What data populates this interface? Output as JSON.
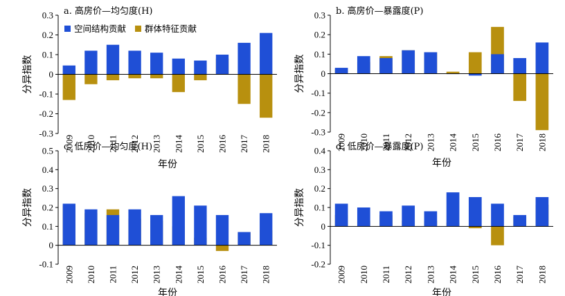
{
  "colors": {
    "spatial": "#1f4fd6",
    "group": "#b8900f",
    "axis": "#000000"
  },
  "legend": {
    "spatial": "空间结构贡献",
    "group": "群体特征贡献"
  },
  "chart_data": [
    {
      "type": "bar",
      "title": "a. 高房价—均匀度(H)",
      "xlabel": "年份",
      "ylabel": "分异指数",
      "categories": [
        "2009",
        "2010",
        "2011",
        "2012",
        "2013",
        "2014",
        "2015",
        "2016",
        "2017",
        "2018"
      ],
      "ylim": [
        -0.3,
        0.3
      ],
      "yticks": [
        "0.3",
        "0.2",
        "0.1",
        "0",
        "-0.1",
        "-0.2",
        "-0.3"
      ],
      "legend_placement": "top-left",
      "series": [
        {
          "name": "空间结构贡献",
          "values": [
            0.045,
            0.12,
            0.15,
            0.12,
            0.11,
            0.08,
            0.07,
            0.1,
            0.16,
            0.21
          ]
        },
        {
          "name": "群体特征贡献",
          "values": [
            -0.13,
            -0.05,
            -0.03,
            -0.02,
            -0.02,
            -0.09,
            -0.03,
            0.08,
            -0.15,
            -0.22
          ]
        }
      ]
    },
    {
      "type": "bar",
      "title": "b. 高房价—暴露度(P)",
      "xlabel": "年份",
      "ylabel": "分异指数",
      "categories": [
        "2009",
        "2010",
        "2011",
        "2012",
        "2013",
        "2014",
        "2015",
        "2016",
        "2017",
        "2018"
      ],
      "ylim": [
        -0.3,
        0.3
      ],
      "yticks": [
        "0.3",
        "0.2",
        "0.1",
        "0",
        "-0.1",
        "-0.2",
        "-0.3"
      ],
      "series": [
        {
          "name": "空间结构贡献",
          "values": [
            0.03,
            0.09,
            0.08,
            0.12,
            0.11,
            0.0,
            -0.01,
            0.1,
            0.08,
            0.16
          ]
        },
        {
          "name": "群体特征贡献",
          "values": [
            0.025,
            0.06,
            0.09,
            0.12,
            0.11,
            0.01,
            0.11,
            0.24,
            -0.14,
            -0.29
          ]
        }
      ]
    },
    {
      "type": "bar",
      "title": "c. 低房价—均匀度(H)",
      "xlabel": "年份",
      "ylabel": "分异指数",
      "categories": [
        "2009",
        "2010",
        "2011",
        "2012",
        "2013",
        "2014",
        "2015",
        "2016",
        "2017",
        "2018"
      ],
      "ylim": [
        -0.1,
        0.5
      ],
      "yticks": [
        "0.5",
        "0.4",
        "0.3",
        "0.2",
        "0.1",
        "0",
        "-0.1"
      ],
      "series": [
        {
          "name": "空间结构贡献",
          "values": [
            0.22,
            0.19,
            0.16,
            0.19,
            0.16,
            0.26,
            0.21,
            0.16,
            0.07,
            0.17
          ]
        },
        {
          "name": "群体特征贡献",
          "values": [
            0.21,
            0.17,
            0.19,
            0.14,
            0.13,
            0.1,
            0.04,
            -0.03,
            0.07,
            0.08
          ]
        }
      ]
    },
    {
      "type": "bar",
      "title": "d. 低房价—暴露度(P)",
      "xlabel": "年份",
      "ylabel": "分异指数",
      "categories": [
        "2009",
        "2010",
        "2011",
        "2012",
        "2013",
        "2014",
        "2015",
        "2016",
        "2017",
        "2018"
      ],
      "ylim": [
        -0.2,
        0.4
      ],
      "yticks": [
        "0.4",
        "0.3",
        "0.2",
        "0.1",
        "0",
        "-0.1",
        "-0.2"
      ],
      "series": [
        {
          "name": "空间结构贡献",
          "values": [
            0.12,
            0.1,
            0.08,
            0.11,
            0.08,
            0.18,
            0.155,
            0.12,
            0.06,
            0.155
          ]
        },
        {
          "name": "群体特征贡献",
          "values": [
            0.06,
            0.03,
            0.06,
            0.03,
            0.03,
            0.02,
            -0.01,
            -0.1,
            0.05,
            0.115
          ]
        }
      ]
    }
  ]
}
